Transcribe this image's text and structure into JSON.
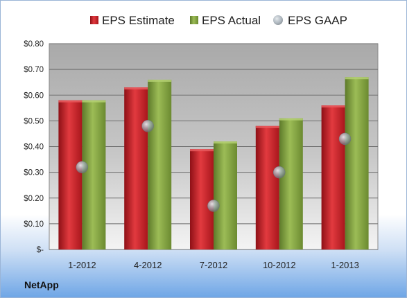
{
  "footer_label": "NetApp",
  "chart_data": {
    "type": "bar",
    "categories": [
      "1-2012",
      "4-2012",
      "7-2012",
      "10-2012",
      "1-2013"
    ],
    "series": [
      {
        "name": "EPS Estimate",
        "kind": "bar",
        "color": "#c41e25",
        "values": [
          0.58,
          0.63,
          0.39,
          0.48,
          0.56
        ]
      },
      {
        "name": "EPS Actual",
        "kind": "bar",
        "color": "#7a9a3a",
        "values": [
          0.58,
          0.66,
          0.42,
          0.51,
          0.67
        ]
      },
      {
        "name": "EPS GAAP",
        "kind": "marker",
        "color": "#9aa6b0",
        "values": [
          0.32,
          0.48,
          0.17,
          0.3,
          0.43
        ]
      }
    ],
    "ylim": [
      0,
      0.8
    ],
    "yticks": [
      {
        "value": 0.0,
        "label": "$-"
      },
      {
        "value": 0.1,
        "label": "$0.10"
      },
      {
        "value": 0.2,
        "label": "$0.20"
      },
      {
        "value": 0.3,
        "label": "$0.30"
      },
      {
        "value": 0.4,
        "label": "$0.40"
      },
      {
        "value": 0.5,
        "label": "$0.50"
      },
      {
        "value": 0.6,
        "label": "$0.60"
      },
      {
        "value": 0.7,
        "label": "$0.70"
      },
      {
        "value": 0.8,
        "label": "$0.80"
      }
    ],
    "grid": true,
    "legend_position": "top",
    "title": "",
    "xlabel": "",
    "ylabel": ""
  }
}
